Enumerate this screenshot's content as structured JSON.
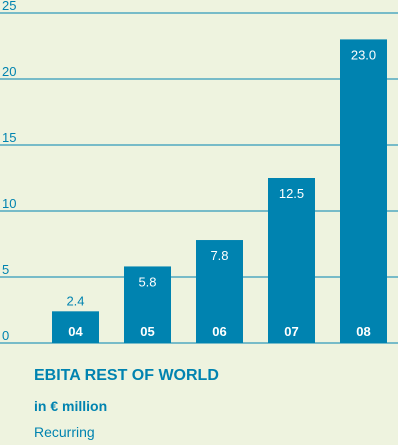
{
  "chart_data": {
    "type": "bar",
    "categories": [
      "04",
      "05",
      "06",
      "07",
      "08"
    ],
    "values": [
      2.4,
      5.8,
      7.8,
      12.5,
      23.0
    ],
    "value_labels": [
      "2.4",
      "5.8",
      "7.8",
      "12.5",
      "23.0"
    ],
    "title": "EBITA REST OF WORLD",
    "subtitle": "in € million",
    "note": "Recurring",
    "xlabel": "",
    "ylabel": "",
    "ylim": [
      0,
      25
    ],
    "yticks": [
      0,
      5,
      10,
      15,
      20,
      25
    ],
    "grid": false,
    "legend": "none",
    "colors": {
      "bar": "#0083b0",
      "axis": "#0083b0",
      "text": "#0083b0",
      "bar_text": "#ffffff",
      "background": "#eef3df"
    }
  }
}
